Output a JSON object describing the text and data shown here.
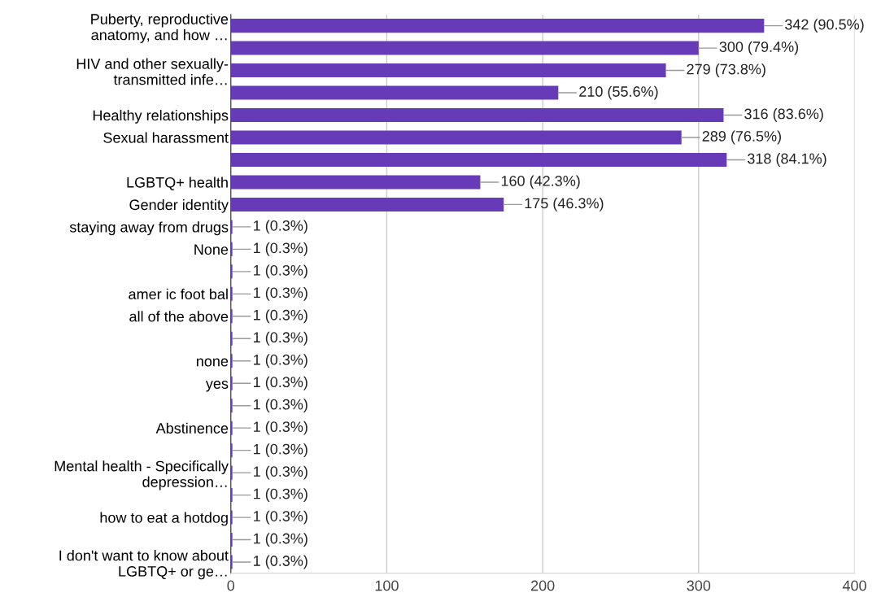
{
  "chart_data": {
    "type": "bar",
    "orientation": "horizontal",
    "categories": [
      "Puberty, reproductive\nanatomy, and how …",
      null,
      "HIV and other sexually-\ntransmitted infe…",
      null,
      "Healthy relationships",
      "Sexual harassment",
      null,
      "LGBTQ+ health",
      "Gender identity",
      "staying away from drugs",
      "None",
      null,
      "amer ic foot bal",
      "all of the above",
      null,
      "none",
      "yes",
      null,
      "Abstinence",
      null,
      "Mental health - Specifically\ndepression…",
      null,
      "how to eat a hotdog",
      null,
      "I don't want to know about\nLGBTQ+ or ge…"
    ],
    "values": [
      342,
      300,
      279,
      210,
      316,
      289,
      318,
      160,
      175,
      1,
      1,
      1,
      1,
      1,
      1,
      1,
      1,
      1,
      1,
      1,
      1,
      1,
      1,
      1,
      1
    ],
    "value_labels": [
      "342 (90.5%)",
      "300 (79.4%)",
      "279 (73.8%)",
      "210 (55.6%)",
      "316 (83.6%)",
      "289 (76.5%)",
      "318 (84.1%)",
      "160 (42.3%)",
      "175 (46.3%)",
      "1 (0.3%)",
      "1 (0.3%)",
      "1 (0.3%)",
      "1 (0.3%)",
      "1 (0.3%)",
      "1 (0.3%)",
      "1 (0.3%)",
      "1 (0.3%)",
      "1 (0.3%)",
      "1 (0.3%)",
      "1 (0.3%)",
      "1 (0.3%)",
      "1 (0.3%)",
      "1 (0.3%)",
      "1 (0.3%)",
      "1 (0.3%)"
    ],
    "color": "#673ab7",
    "xlim": [
      0,
      400
    ],
    "xticks": [
      0,
      100,
      200,
      300,
      400
    ],
    "grid": "x"
  }
}
